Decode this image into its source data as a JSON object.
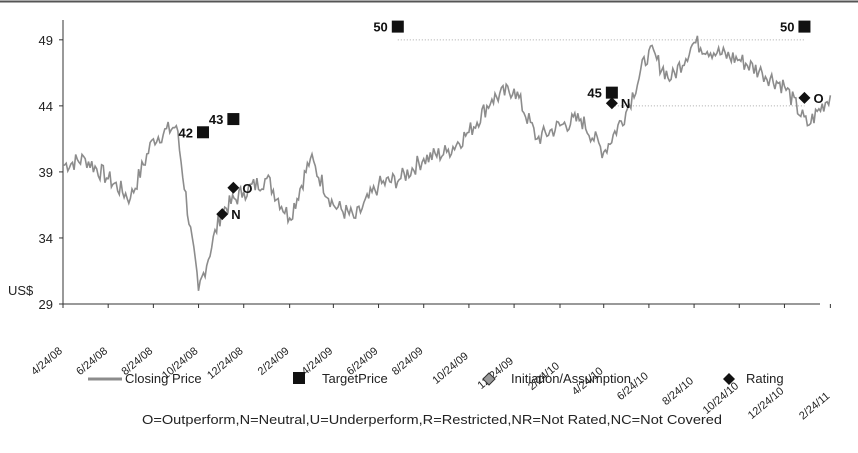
{
  "chart_data": {
    "type": "line",
    "ylabel": "US$",
    "ylim": [
      29,
      50.5
    ],
    "yticks": [
      "29",
      "34",
      "39",
      "44",
      "49"
    ],
    "xticks": [
      "4/24/08",
      "6/24/08",
      "8/24/08",
      "10/24/08",
      "12/24/08",
      "2/24/09",
      "4/24/09",
      "6/24/09",
      "8/24/09",
      "10/24/09",
      "12/24/09",
      "2/24/10",
      "4/24/10",
      "6/24/10",
      "8/24/10",
      "10/24/10",
      "12/24/10",
      "2/24/11"
    ],
    "grid": false,
    "legend_position": "bottom",
    "series": [
      {
        "name": "Closing Price",
        "color": "#8c8c8c",
        "x": [
          "4/24/08",
          "5/24/08",
          "6/24/08",
          "7/24/08",
          "8/24/08",
          "9/24/08",
          "10/24/08",
          "11/24/08",
          "12/24/08",
          "1/24/09",
          "2/24/09",
          "3/24/09",
          "4/24/09",
          "5/24/09",
          "6/24/09",
          "7/24/09",
          "8/24/09",
          "9/24/09",
          "10/24/09",
          "11/24/09",
          "12/24/09",
          "1/24/10",
          "2/24/10",
          "3/24/10",
          "4/24/10",
          "5/24/10",
          "6/24/10",
          "7/24/10",
          "8/24/10",
          "9/24/10",
          "10/24/10",
          "11/24/10",
          "12/24/10",
          "1/24/11",
          "2/24/11"
        ],
        "values": [
          39.5,
          40.0,
          38.5,
          37.0,
          41.5,
          42.5,
          30.0,
          36.0,
          37.5,
          38.5,
          35.5,
          40.0,
          36.5,
          35.5,
          38.0,
          38.5,
          40.0,
          40.5,
          42.0,
          44.5,
          45.3,
          41.5,
          42.5,
          43.0,
          40.5,
          43.5,
          48.2,
          46.0,
          48.8,
          48.0,
          47.5,
          46.5,
          45.5,
          42.5,
          44.8
        ]
      }
    ],
    "target_prices": [
      {
        "date": "10/30/08",
        "value": 42,
        "label": "42"
      },
      {
        "date": "12/10/08",
        "value": 43,
        "label": "43"
      },
      {
        "date": "7/20/09",
        "value": 50,
        "label": "50"
      },
      {
        "date": "5/5/10",
        "value": 45,
        "label": "45"
      },
      {
        "date": "1/20/11",
        "value": 50,
        "label": "50"
      }
    ],
    "ratings": [
      {
        "date": "11/25/08",
        "value": 35.8,
        "label": "N"
      },
      {
        "date": "12/10/08",
        "value": 37.8,
        "label": "O"
      },
      {
        "date": "5/5/10",
        "value": 44.2,
        "label": "N"
      },
      {
        "date": "1/20/11",
        "value": 44.6,
        "label": "O"
      }
    ],
    "target_lines": [
      {
        "from": "7/20/09",
        "to": "1/20/11",
        "value": 49
      },
      {
        "from": "5/5/10",
        "to": "1/20/11",
        "value": 44
      }
    ]
  },
  "legend": {
    "closing_price": "Closing Price",
    "target_price": "TargetPrice",
    "initiation": "Initiation/Assumption",
    "rating": "Rating"
  },
  "footnote": "O=Outperform,N=Neutral,U=Underperform,R=Restricted,NR=Not Rated,NC=Not Covered"
}
